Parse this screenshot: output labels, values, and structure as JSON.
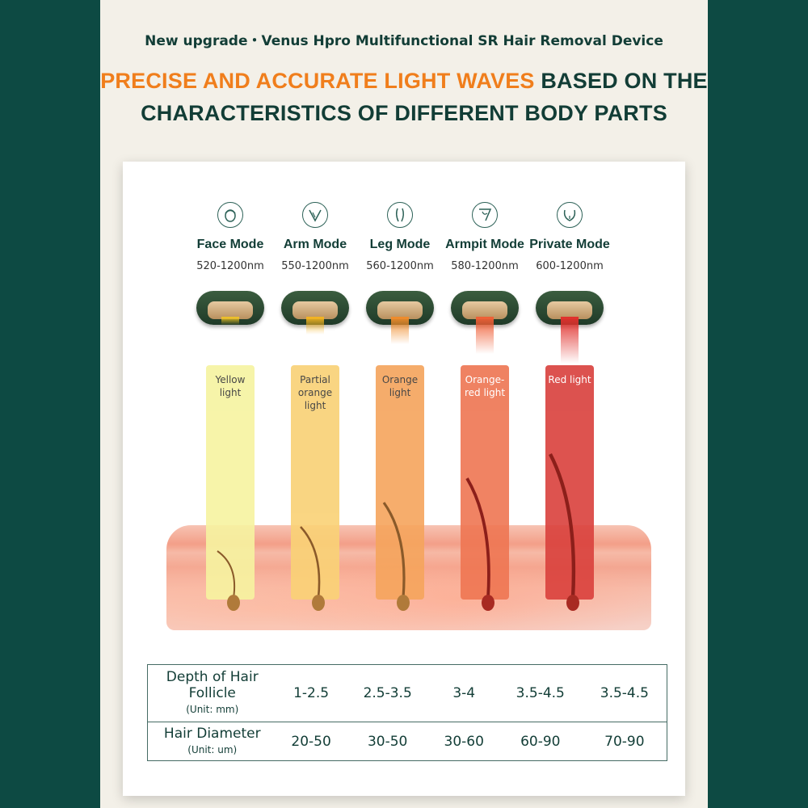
{
  "header": {
    "subtitle": "New upgrade・Venus Hpro Multifunctional SR Hair Removal Device",
    "headline_highlight": "PRECISE AND ACCURATE LIGHT WAVES",
    "headline_rest": " BASED ON THE CHARACTERISTICS OF DIFFERENT BODY PARTS",
    "highlight_color": "#f07e1c",
    "text_color": "#123d36"
  },
  "modes": [
    {
      "name": "Face Mode",
      "range": "520-1200nm",
      "light": "Yellow light",
      "icon": "face-icon",
      "color": "#f6f3a0",
      "beam": "#f2c522"
    },
    {
      "name": "Arm Mode",
      "range": "550-1200nm",
      "light": "Partial orange light",
      "icon": "arm-icon",
      "color": "#f9d175",
      "beam": "#f5b51f"
    },
    {
      "name": "Leg Mode",
      "range": "560-1200nm",
      "light": "Orange light",
      "icon": "leg-icon",
      "color": "#f5a45c",
      "beam": "#f08c2a"
    },
    {
      "name": "Armpit Mode",
      "range": "580-1200nm",
      "light": "Orange-red light",
      "icon": "armpit-icon",
      "color": "#ee7552",
      "beam": "#ef5e35"
    },
    {
      "name": "Private Mode",
      "range": "600-1200nm",
      "light": "Red light",
      "icon": "private-icon",
      "color": "#d9403c",
      "beam": "#e0302c"
    }
  ],
  "table": {
    "rows": [
      {
        "label": "Depth of Hair Follicle",
        "unit": "(Unit: mm)",
        "values": [
          "1-2.5",
          "2.5-3.5",
          "3-4",
          "3.5-4.5",
          "3.5-4.5"
        ]
      },
      {
        "label": "Hair Diameter",
        "unit": "(Unit: um)",
        "values": [
          "20-50",
          "30-50",
          "30-60",
          "60-90",
          "70-90"
        ]
      }
    ]
  }
}
